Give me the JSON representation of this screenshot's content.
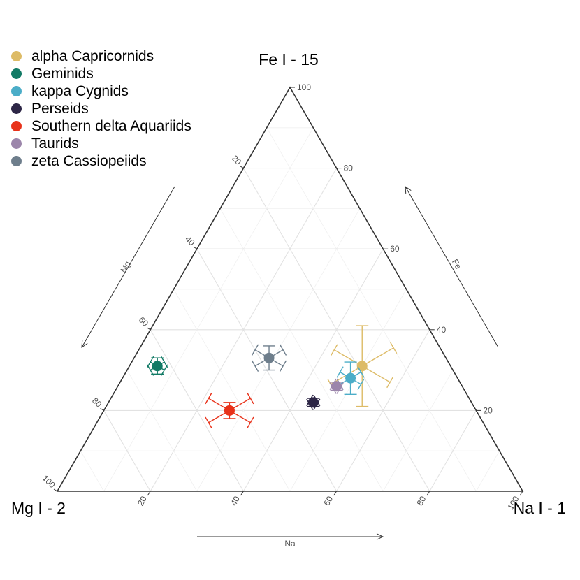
{
  "chart_data": {
    "type": "scatter",
    "subtype": "ternary",
    "axes": {
      "top": {
        "corner_label": "Fe I - 15",
        "axis_label": "Fe"
      },
      "left": {
        "corner_label": "Mg I - 2",
        "axis_label": "Mg"
      },
      "right": {
        "corner_label": "Na I - 1",
        "axis_label": "Na"
      }
    },
    "ticks": [
      "20",
      "40",
      "60",
      "80",
      "100"
    ],
    "grid": true,
    "legend_position": "top-left",
    "series": [
      {
        "name": "alpha Capricornids",
        "color": "#DDBB66",
        "Fe": 31,
        "Mg": 19,
        "Na": 50,
        "err": {
          "Fe": 10,
          "Mg": 9,
          "Na": 8
        }
      },
      {
        "name": "Geminids",
        "color": "#117A65",
        "Fe": 31,
        "Mg": 63,
        "Na": 6,
        "err": {
          "Fe": 2,
          "Mg": 2,
          "Na": 2
        }
      },
      {
        "name": "kappa Cygnids",
        "color": "#4BADC8",
        "Fe": 28,
        "Mg": 23,
        "Na": 49,
        "err": {
          "Fe": 4,
          "Mg": 3,
          "Na": 3
        }
      },
      {
        "name": "Perseids",
        "color": "#2D2646",
        "Fe": 22,
        "Mg": 34,
        "Na": 44,
        "err": {
          "Fe": 1,
          "Mg": 1,
          "Na": 1
        }
      },
      {
        "name": "Southern delta Aquariids",
        "color": "#E8321A",
        "Fe": 20,
        "Mg": 53,
        "Na": 27,
        "err": {
          "Fe": 2,
          "Mg": 6,
          "Na": 6
        }
      },
      {
        "name": "Taurids",
        "color": "#9C86AB",
        "Fe": 26,
        "Mg": 27,
        "Na": 47,
        "err": {
          "Fe": 1,
          "Mg": 1,
          "Na": 1
        }
      },
      {
        "name": "zeta Cassiopeiids",
        "color": "#6E7E8C",
        "Fe": 33,
        "Mg": 38,
        "Na": 29,
        "err": {
          "Fe": 3,
          "Mg": 4,
          "Na": 4
        }
      }
    ]
  }
}
